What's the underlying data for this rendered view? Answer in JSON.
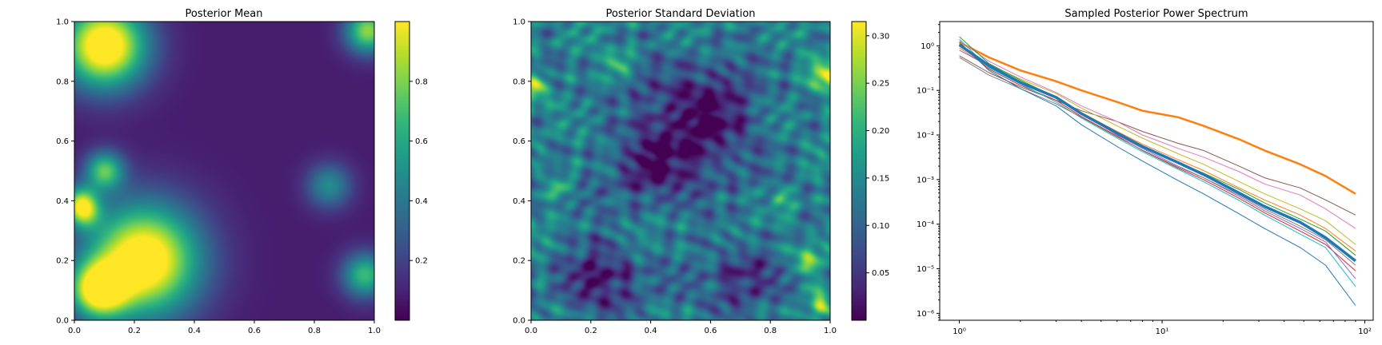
{
  "chart_data": [
    {
      "type": "heatmap",
      "title": "Posterior Mean",
      "xlim": [
        0,
        1
      ],
      "ylim": [
        0,
        1
      ],
      "xticks": [
        "0.0",
        "0.2",
        "0.4",
        "0.6",
        "0.8",
        "1.0"
      ],
      "yticks": [
        "0.0",
        "0.2",
        "0.4",
        "0.6",
        "0.8",
        "1.0"
      ],
      "colormap": "viridis",
      "colorbar": {
        "range": [
          0.0,
          1.0
        ],
        "ticks": [
          "0.2",
          "0.4",
          "0.6",
          "0.8"
        ]
      },
      "field": {
        "background": 0.08,
        "blobs": [
          {
            "x": 0.23,
            "y": 0.2,
            "r": 0.2,
            "amp": 1.1
          },
          {
            "x": 0.08,
            "y": 0.1,
            "r": 0.1,
            "amp": 0.9
          },
          {
            "x": 0.1,
            "y": 0.92,
            "r": 0.15,
            "amp": 1.1
          },
          {
            "x": 0.03,
            "y": 0.36,
            "r": 0.06,
            "amp": 0.55
          },
          {
            "x": 0.1,
            "y": 0.5,
            "r": 0.07,
            "amp": 0.65
          },
          {
            "x": 0.98,
            "y": 0.97,
            "r": 0.08,
            "amp": 0.75
          },
          {
            "x": 0.97,
            "y": 0.15,
            "r": 0.08,
            "amp": 0.6
          },
          {
            "x": 0.85,
            "y": 0.45,
            "r": 0.08,
            "amp": 0.4
          },
          {
            "x": 0.02,
            "y": 0.4,
            "r": 0.06,
            "amp": 0.5
          }
        ]
      }
    },
    {
      "type": "heatmap",
      "title": "Posterior Standard Deviation",
      "xlim": [
        0,
        1
      ],
      "ylim": [
        0,
        1
      ],
      "xticks": [
        "0.0",
        "0.2",
        "0.4",
        "0.6",
        "0.8",
        "1.0"
      ],
      "yticks": [
        "0.0",
        "0.2",
        "0.4",
        "0.6",
        "0.8",
        "1.0"
      ],
      "colormap": "viridis",
      "colorbar": {
        "range": [
          0.0,
          0.315
        ],
        "ticks": [
          "0.05",
          "0.10",
          "0.15",
          "0.20",
          "0.25",
          "0.30"
        ]
      },
      "field": {
        "background": 0.13,
        "blobs": [
          {
            "x": 0.56,
            "y": 0.66,
            "r": 0.2,
            "amp": -0.14
          },
          {
            "x": 0.38,
            "y": 0.52,
            "r": 0.12,
            "amp": -0.1
          },
          {
            "x": 0.24,
            "y": 0.15,
            "r": 0.13,
            "amp": -0.11
          },
          {
            "x": 0.7,
            "y": 0.15,
            "r": 0.12,
            "amp": -0.09
          },
          {
            "x": 0.01,
            "y": 0.78,
            "r": 0.05,
            "amp": 0.18
          },
          {
            "x": 0.99,
            "y": 0.82,
            "r": 0.06,
            "amp": 0.17
          },
          {
            "x": 0.97,
            "y": 0.05,
            "r": 0.05,
            "amp": 0.16
          },
          {
            "x": 0.92,
            "y": 0.2,
            "r": 0.06,
            "amp": 0.1
          },
          {
            "x": 0.3,
            "y": 0.85,
            "r": 0.05,
            "amp": 0.1
          },
          {
            "x": 0.1,
            "y": 0.45,
            "r": 0.05,
            "amp": 0.08
          },
          {
            "x": 0.85,
            "y": 0.4,
            "r": 0.05,
            "amp": 0.09
          }
        ],
        "texture_amp": 0.05
      }
    },
    {
      "type": "line",
      "title": "Sampled Posterior Power Spectrum",
      "xscale": "log",
      "yscale": "log",
      "xlim": [
        0.8,
        110
      ],
      "ylim": [
        7e-07,
        3.5
      ],
      "xticks": [
        "10⁰",
        "10¹",
        "10²"
      ],
      "yticks": [
        "10⁻⁶",
        "10⁻⁵",
        "10⁻⁴",
        "10⁻³",
        "10⁻²",
        "10⁻¹",
        "10⁰"
      ],
      "x": [
        1,
        1.4,
        2,
        3,
        4,
        6,
        8,
        12,
        16,
        24,
        32,
        48,
        64,
        90
      ],
      "series": [
        {
          "color": "#ff7f0e",
          "width": 2.5,
          "values": [
            1.2,
            0.55,
            0.28,
            0.16,
            0.1,
            0.055,
            0.035,
            0.025,
            0.016,
            0.008,
            0.0045,
            0.0022,
            0.0012,
            0.00048
          ]
        },
        {
          "color": "#8c564b",
          "width": 1,
          "values": [
            0.6,
            0.25,
            0.12,
            0.06,
            0.035,
            0.02,
            0.012,
            0.0065,
            0.0045,
            0.002,
            0.0011,
            0.00065,
            0.00035,
            0.00016
          ]
        },
        {
          "color": "#e377c2",
          "width": 1,
          "values": [
            1.3,
            0.45,
            0.2,
            0.09,
            0.045,
            0.02,
            0.01,
            0.005,
            0.0032,
            0.0015,
            0.0008,
            0.00045,
            0.00022,
            8e-05
          ]
        },
        {
          "color": "#bcbd22",
          "width": 1,
          "values": [
            1.0,
            0.38,
            0.18,
            0.085,
            0.04,
            0.016,
            0.0085,
            0.0038,
            0.0022,
            0.0009,
            0.00048,
            0.00022,
            0.00012,
            3.5e-05
          ]
        },
        {
          "color": "#ff7f0e",
          "width": 1,
          "values": [
            0.9,
            0.33,
            0.15,
            0.07,
            0.032,
            0.012,
            0.0062,
            0.0028,
            0.0016,
            0.00065,
            0.00035,
            0.00016,
            8e-05,
            2.5e-05
          ]
        },
        {
          "color": "#2ca02c",
          "width": 1,
          "values": [
            1.6,
            0.4,
            0.17,
            0.07,
            0.03,
            0.011,
            0.0055,
            0.0024,
            0.0014,
            0.0006,
            0.0003,
            0.00013,
            7e-05,
            2e-05
          ]
        },
        {
          "color": "#d62728",
          "width": 1,
          "values": [
            1.1,
            0.3,
            0.13,
            0.06,
            0.026,
            0.0095,
            0.0045,
            0.0018,
            0.001,
            0.00038,
            0.00018,
            7e-05,
            3.5e-05,
            9e-06
          ]
        },
        {
          "color": "#9467bd",
          "width": 1,
          "values": [
            0.8,
            0.35,
            0.16,
            0.07,
            0.03,
            0.01,
            0.005,
            0.002,
            0.0011,
            0.00042,
            0.0002,
            8e-05,
            4e-05,
            6e-06
          ]
        },
        {
          "color": "#17becf",
          "width": 1,
          "values": [
            1.4,
            0.32,
            0.14,
            0.055,
            0.024,
            0.0085,
            0.0042,
            0.0017,
            0.0009,
            0.00034,
            0.00016,
            6e-05,
            3e-05,
            4e-06
          ]
        },
        {
          "color": "#7f7f7f",
          "width": 1,
          "values": [
            0.55,
            0.22,
            0.11,
            0.05,
            0.025,
            0.009,
            0.0046,
            0.0019,
            0.0011,
            0.00045,
            0.00022,
            9e-05,
            4.5e-05,
            1.2e-05
          ]
        },
        {
          "color": "#1f77b4",
          "width": 1,
          "values": [
            1.2,
            0.28,
            0.11,
            0.045,
            0.017,
            0.0055,
            0.0026,
            0.00095,
            0.00048,
            0.00017,
            8e-05,
            3e-05,
            1.2e-05,
            1.5e-06
          ]
        },
        {
          "color": "#1f77b4",
          "width": 3.5,
          "values": [
            1.05,
            0.36,
            0.15,
            0.07,
            0.03,
            0.011,
            0.0055,
            0.0024,
            0.0013,
            0.0005,
            0.00025,
            0.00011,
            5e-05,
            1.5e-05
          ]
        }
      ]
    }
  ]
}
